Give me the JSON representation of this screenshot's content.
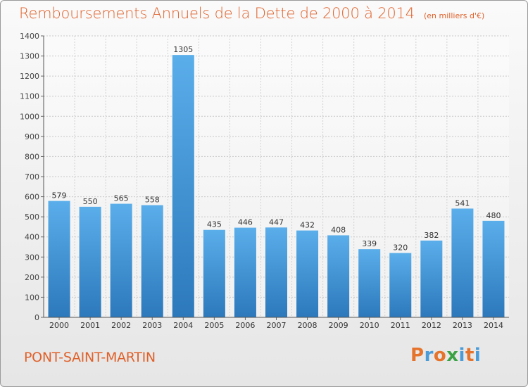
{
  "title": "Remboursements Annuels de la Dette de 2000 à 2014",
  "unit_note": "(en milliers d'€)",
  "commune": "PONT-SAINT-MARTIN",
  "logo": {
    "letters": [
      "P",
      "r",
      "o",
      "x",
      "i",
      "t",
      "i"
    ],
    "colors": [
      "#e5732b",
      "#4a9bd8",
      "#e5732b",
      "#3aa245",
      "#4a9bd8",
      "#e5732b",
      "#4a9bd8"
    ]
  },
  "chart_data": {
    "type": "bar",
    "categories": [
      "2000",
      "2001",
      "2002",
      "2003",
      "2004",
      "2005",
      "2006",
      "2007",
      "2008",
      "2009",
      "2010",
      "2011",
      "2012",
      "2013",
      "2014"
    ],
    "values": [
      579,
      550,
      565,
      558,
      1305,
      435,
      446,
      447,
      432,
      408,
      339,
      320,
      382,
      541,
      480
    ],
    "ylim": [
      0,
      1400
    ],
    "yticks": [
      0,
      100,
      200,
      300,
      400,
      500,
      600,
      700,
      800,
      900,
      1000,
      1100,
      1200,
      1300,
      1400
    ],
    "grid": true,
    "bar_color": "#3d8fd4",
    "title_color": "#e0612a"
  }
}
